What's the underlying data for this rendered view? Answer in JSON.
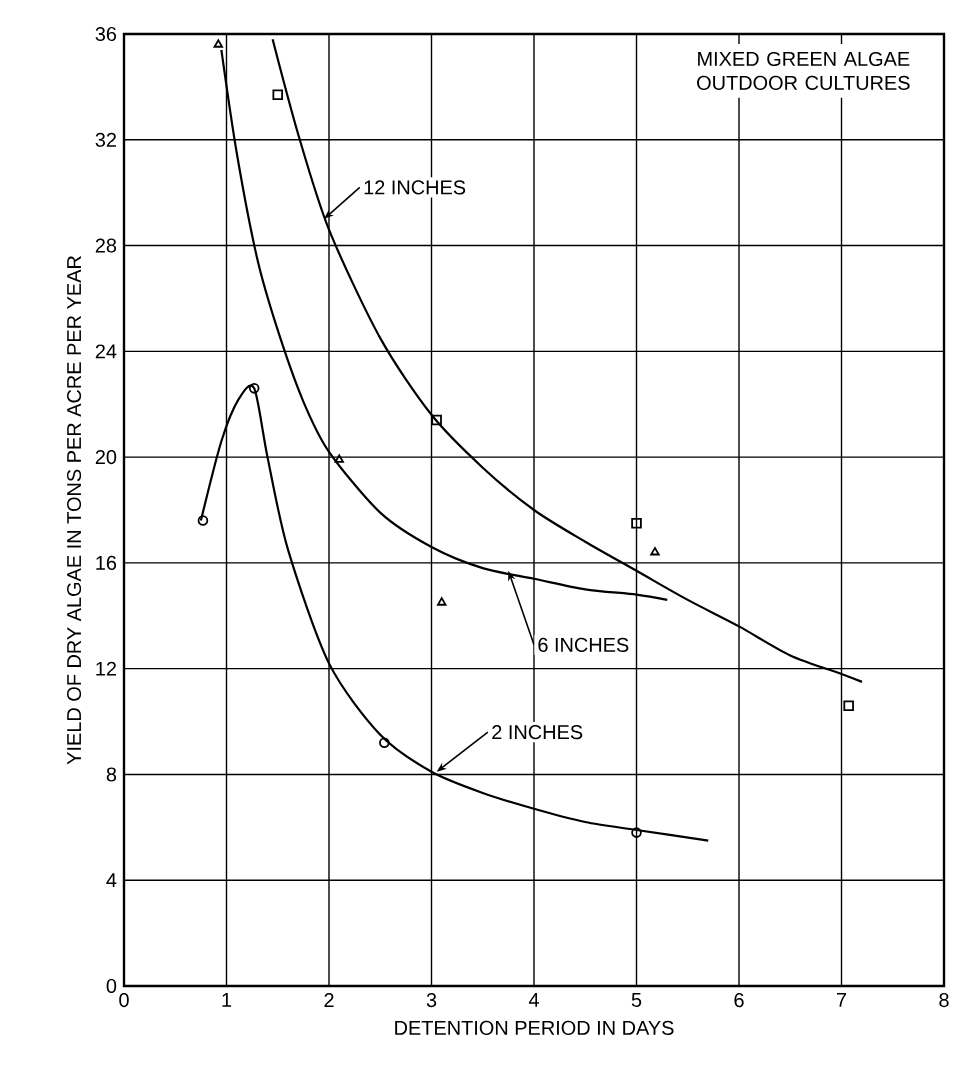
{
  "chart_data": {
    "type": "line",
    "title": "MIXED GREEN ALGAE OUTDOOR CULTURES",
    "xlabel": "DETENTION PERIOD IN DAYS",
    "ylabel": "YIELD OF DRY ALGAE IN TONS PER ACRE PER YEAR",
    "xlim": [
      0,
      8
    ],
    "ylim": [
      0,
      36
    ],
    "xticks": [
      0,
      1,
      2,
      3,
      4,
      5,
      6,
      7,
      8
    ],
    "yticks": [
      0,
      4,
      8,
      12,
      16,
      20,
      24,
      28,
      32,
      36
    ],
    "grid": true,
    "series": [
      {
        "type": "scatter",
        "marker": "circle",
        "color": "#000000",
        "x": [
          0.77,
          1.27,
          2.54,
          5.0
        ],
        "values": [
          17.6,
          22.6,
          9.2,
          5.8
        ]
      },
      {
        "type": "scatter",
        "marker": "triangle",
        "color": "#000000",
        "x": [
          0.92,
          2.1,
          3.1,
          5.18
        ],
        "values": [
          35.6,
          19.9,
          14.5,
          16.4
        ]
      },
      {
        "type": "scatter",
        "marker": "square",
        "color": "#000000",
        "x": [
          1.5,
          3.05,
          5.0,
          7.07
        ],
        "values": [
          33.7,
          21.4,
          17.5,
          10.6
        ]
      },
      {
        "marker": "none",
        "color": "#000000",
        "x": [
          0.75,
          0.95,
          1.12,
          1.27,
          1.4,
          1.6,
          2.0,
          2.5,
          3.0,
          3.5,
          4.0,
          4.5,
          5.0,
          5.7
        ],
        "values": [
          17.6,
          20.6,
          22.2,
          22.6,
          20.0,
          16.5,
          12.2,
          9.5,
          8.1,
          7.3,
          6.7,
          6.2,
          5.9,
          5.5
        ]
      },
      {
        "marker": "none",
        "color": "#000000",
        "x": [
          0.95,
          1.1,
          1.3,
          1.5,
          1.75,
          2.0,
          2.5,
          3.0,
          3.5,
          4.0,
          4.5,
          5.0,
          5.3
        ],
        "values": [
          35.4,
          31.5,
          27.5,
          24.8,
          22.1,
          20.2,
          17.9,
          16.6,
          15.8,
          15.4,
          15.0,
          14.8,
          14.6
        ]
      },
      {
        "marker": "none",
        "color": "#000000",
        "x": [
          1.45,
          1.7,
          2.0,
          2.5,
          3.0,
          3.5,
          4.0,
          4.5,
          5.0,
          5.5,
          6.0,
          6.5,
          7.0,
          7.2
        ],
        "values": [
          35.8,
          32.2,
          28.6,
          24.5,
          21.6,
          19.6,
          18.0,
          16.8,
          15.7,
          14.6,
          13.6,
          12.5,
          11.8,
          11.5
        ]
      }
    ],
    "annotations": [
      {
        "text": "12 INCHES",
        "x": 1.95,
        "y": 29
      },
      {
        "text": "6 INCHES",
        "x": 3.75,
        "y": 15.7
      },
      {
        "text": "2 INCHES",
        "x": 3.05,
        "y": 8.1
      }
    ]
  }
}
